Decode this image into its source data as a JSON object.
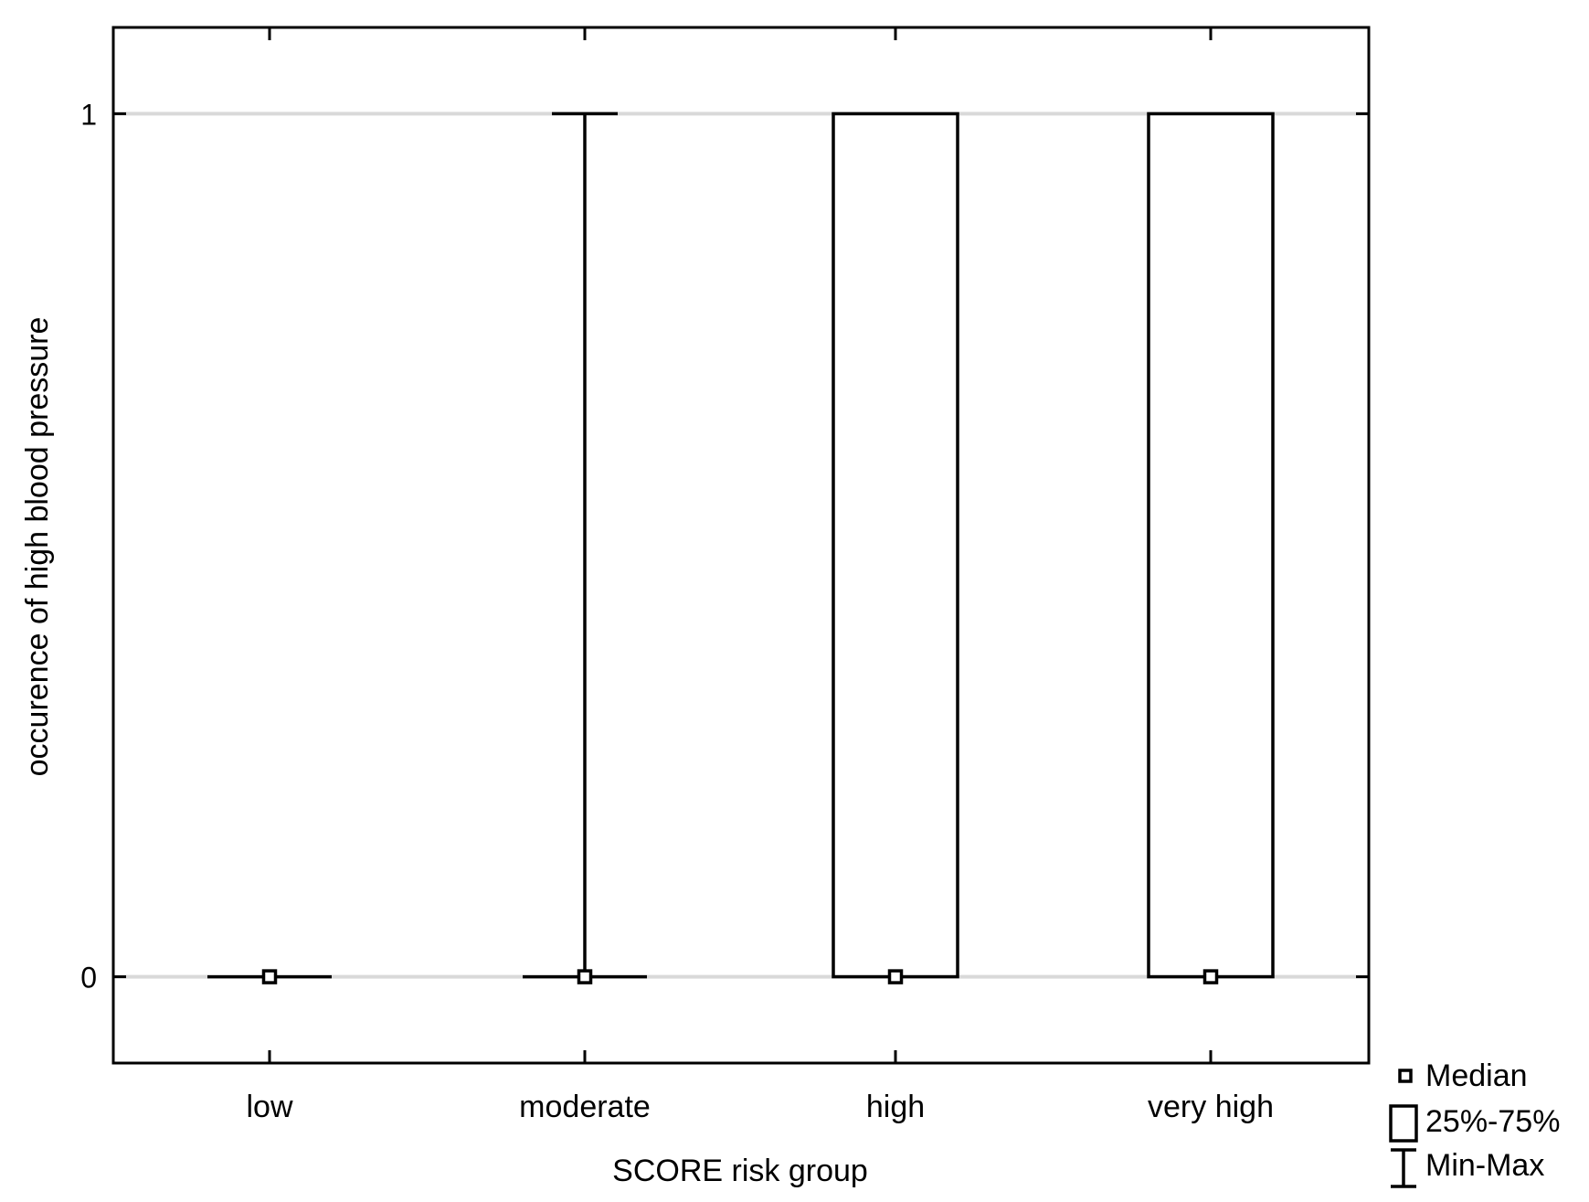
{
  "chart_data": {
    "type": "boxplot",
    "xlabel": "SCORE risk group",
    "ylabel": "occurence of high blood pressure",
    "categories": [
      "low",
      "moderate",
      "high",
      "very high"
    ],
    "yticks": [
      "0",
      "1"
    ],
    "ylim": [
      -0.1,
      1.1
    ],
    "grid": true,
    "groups": [
      {
        "category": "low",
        "median": 0,
        "q1": 0,
        "q3": 0,
        "min": 0,
        "max": 0
      },
      {
        "category": "moderate",
        "median": 0,
        "q1": 0,
        "q3": 0,
        "min": 0,
        "max": 1
      },
      {
        "category": "high",
        "median": 0,
        "q1": 0,
        "q3": 1,
        "min": 0,
        "max": 1
      },
      {
        "category": "very high",
        "median": 0,
        "q1": 0,
        "q3": 1,
        "min": 0,
        "max": 1
      }
    ],
    "legend": {
      "position": "bottom-right",
      "items": [
        {
          "symbol": "median-square",
          "label": "Median"
        },
        {
          "symbol": "box",
          "label": "25%-75%"
        },
        {
          "symbol": "whisker",
          "label": "Min-Max"
        }
      ]
    },
    "colors": {
      "grid": "#d9d9d9",
      "stroke": "#000000"
    }
  }
}
